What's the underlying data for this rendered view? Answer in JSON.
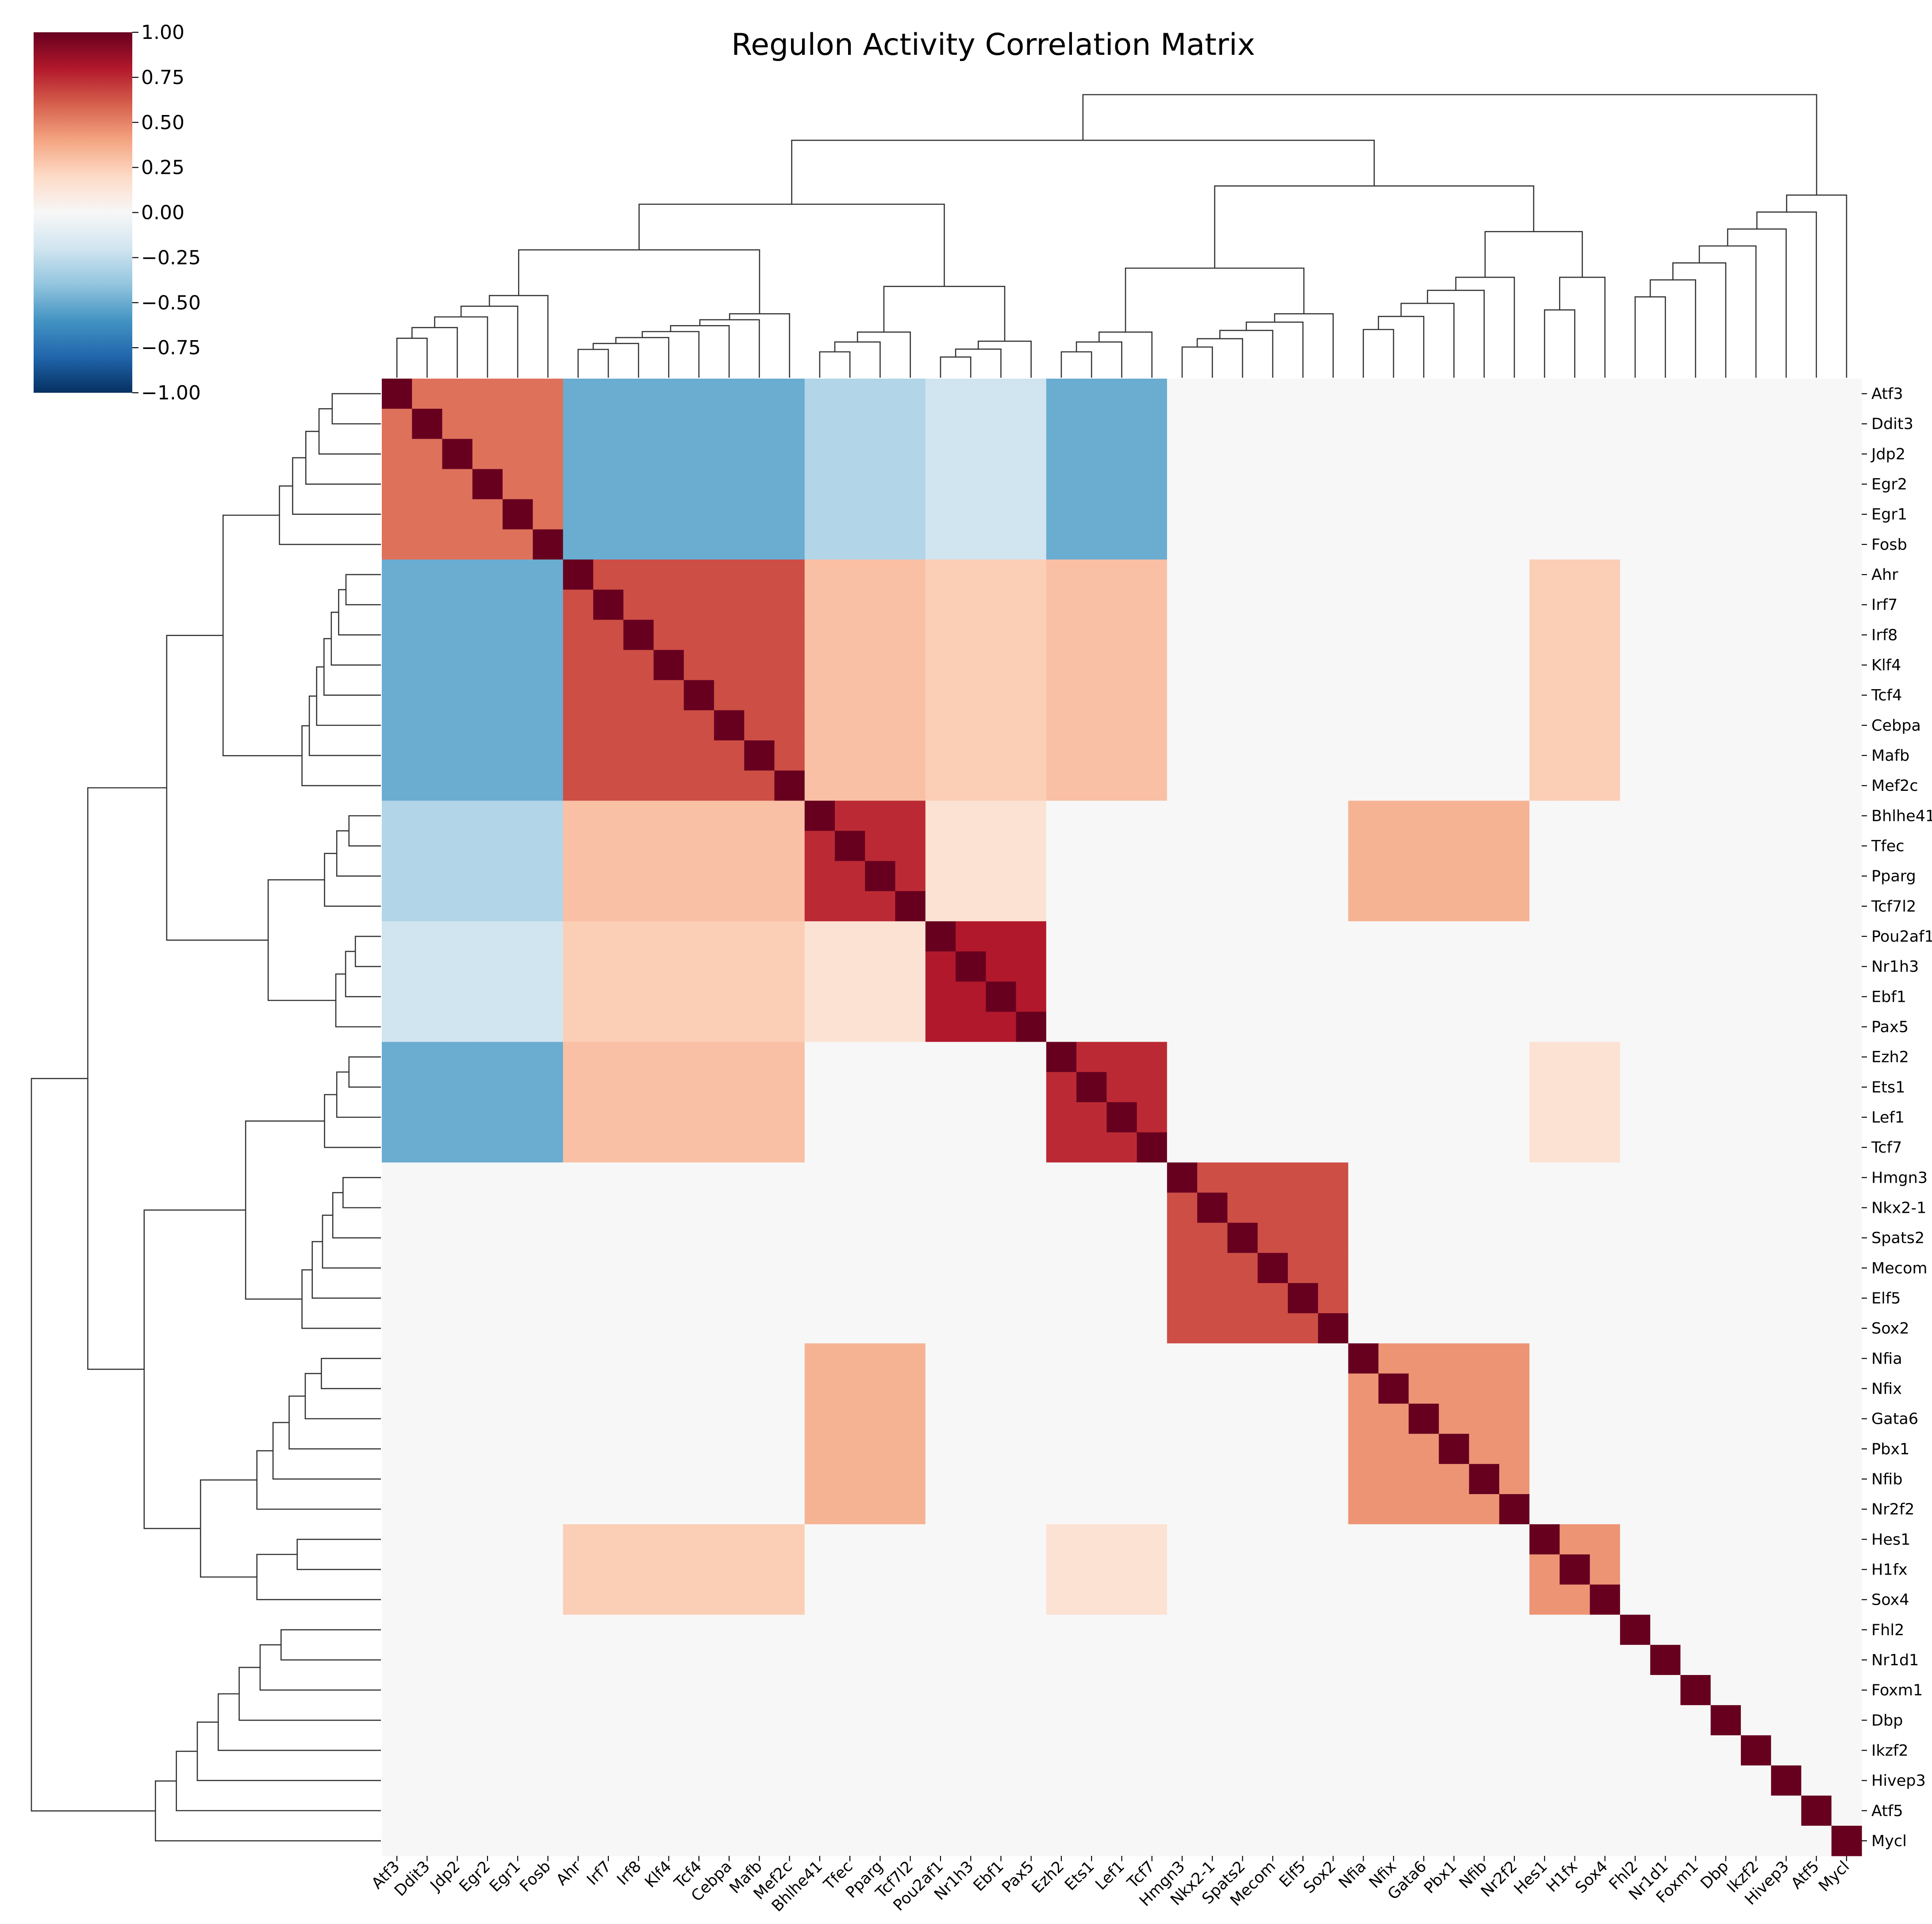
{
  "chart_data": {
    "type": "heatmap",
    "title": "Regulon Activity Correlation Matrix",
    "labels": [
      "Atf3",
      "Ddit3",
      "Jdp2",
      "Egr2",
      "Egr1",
      "Fosb",
      "Ahr",
      "Irf7",
      "Irf8",
      "Klf4",
      "Tcf4",
      "Cebpa",
      "Mafb",
      "Mef2c",
      "Bhlhe41",
      "Tfec",
      "Pparg",
      "Tcf7l2",
      "Pou2af1",
      "Nr1h3",
      "Ebf1",
      "Pax5",
      "Ezh2",
      "Ets1",
      "Lef1",
      "Tcf7",
      "Hmgn3",
      "Nkx2-1",
      "Spats2",
      "Mecom",
      "Elf5",
      "Sox2",
      "Nfia",
      "Nfix",
      "Gata6",
      "Pbx1",
      "Nfib",
      "Nr2f2",
      "Hes1",
      "H1fx",
      "Sox4",
      "Fhl2",
      "Nr1d1",
      "Foxm1",
      "Dbp",
      "Ikzf2",
      "Hivep3",
      "Atf5",
      "Mycl"
    ],
    "groups": [
      {
        "start": 0,
        "end": 6,
        "within": 0.55
      },
      {
        "start": 6,
        "end": 14,
        "within": 0.65
      },
      {
        "start": 14,
        "end": 18,
        "within": 0.75
      },
      {
        "start": 18,
        "end": 22,
        "within": 0.8
      },
      {
        "start": 22,
        "end": 26,
        "within": 0.75
      },
      {
        "start": 26,
        "end": 32,
        "within": 0.65
      },
      {
        "start": 32,
        "end": 38,
        "within": 0.45
      },
      {
        "start": 38,
        "end": 41,
        "within": 0.45
      },
      {
        "start": 41,
        "end": 49,
        "within": 0.0
      }
    ],
    "between": [
      [
        0,
        1,
        -0.5
      ],
      [
        0,
        2,
        -0.3
      ],
      [
        0,
        3,
        -0.2
      ],
      [
        0,
        4,
        -0.5
      ],
      [
        1,
        2,
        0.3
      ],
      [
        1,
        3,
        0.25
      ],
      [
        1,
        4,
        0.3
      ],
      [
        2,
        3,
        0.15
      ],
      [
        2,
        6,
        0.35
      ],
      [
        4,
        7,
        0.15
      ],
      [
        1,
        7,
        0.25
      ]
    ],
    "baseline": 0.0,
    "vmin": -1.0,
    "vmax": 1.0,
    "cmap": "RdBu_r",
    "colorbar_ticks": [
      "1.00",
      "0.75",
      "0.50",
      "0.25",
      "0.00",
      "−0.25",
      "−0.50",
      "−0.75",
      "−1.00"
    ],
    "colorbar_values": [
      1.0,
      0.75,
      0.5,
      0.25,
      0.0,
      -0.25,
      -0.5,
      -0.75,
      -1.0
    ],
    "dendrogram": "hierarchical clustering on rows and columns"
  }
}
